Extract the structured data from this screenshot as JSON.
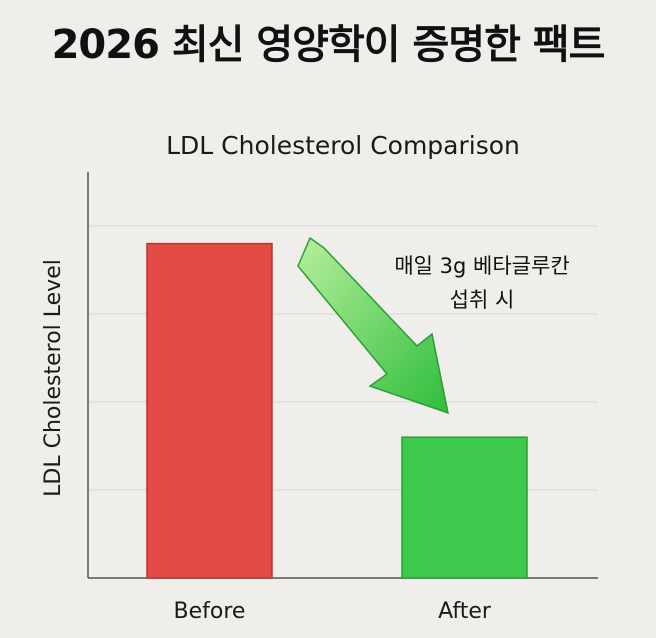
{
  "headline": "2026 최신 영양학이 증명한 팩트",
  "chart_data": {
    "type": "bar",
    "title": "LDL Cholesterol Comparison",
    "xlabel": "",
    "ylabel": "LDL Cholesterol Level",
    "categories": [
      "Before",
      "After"
    ],
    "values": [
      3.8,
      1.6
    ],
    "ylim": [
      0,
      4.5
    ],
    "grid": true,
    "colors": [
      "#e44b45",
      "#3dc94c"
    ],
    "annotation": {
      "lines": [
        "매일 3g 베타글루칸",
        "섭취 시"
      ],
      "arrow_color": "#3dc94c"
    }
  }
}
